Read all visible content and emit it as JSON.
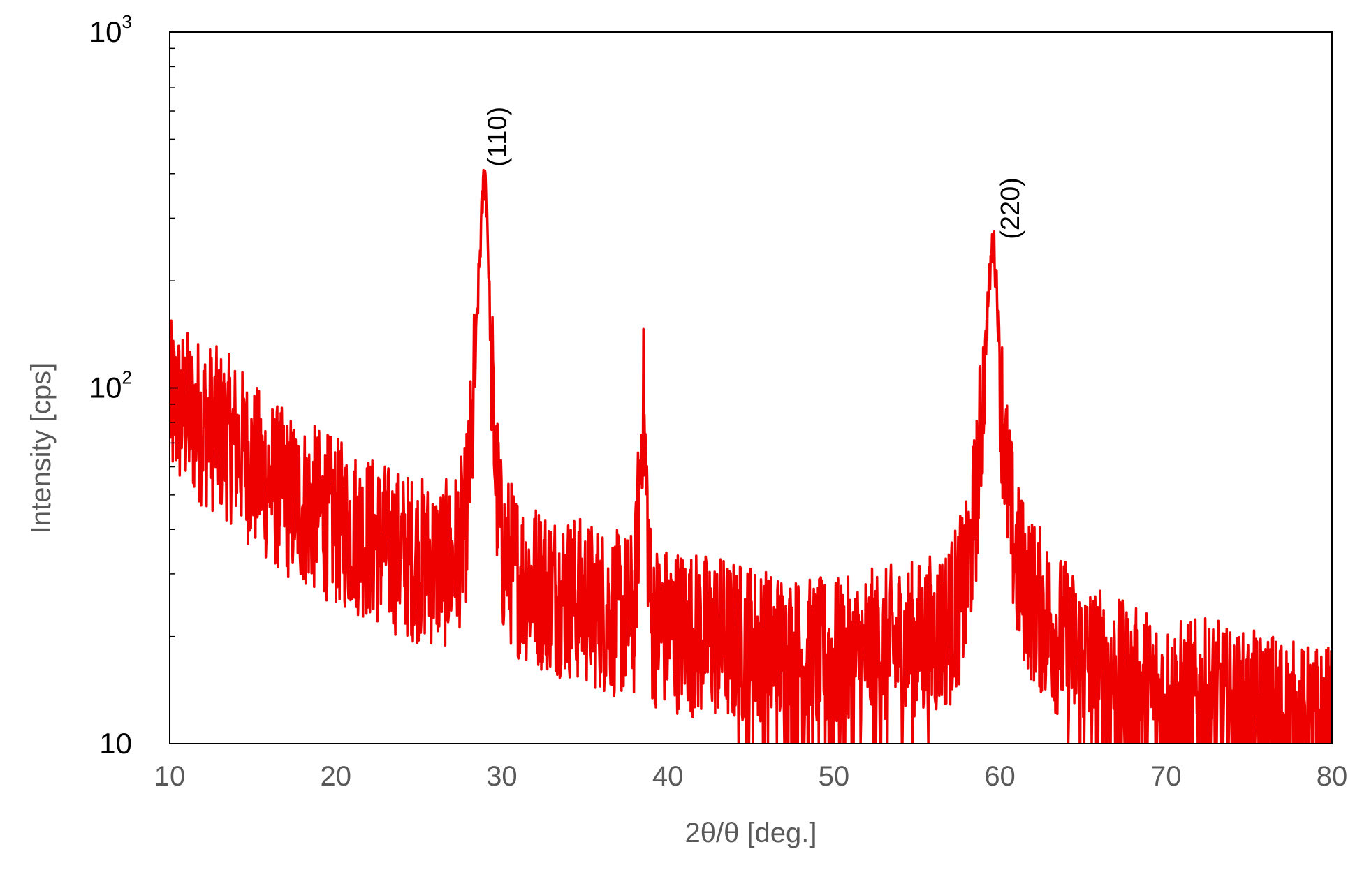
{
  "chart_data": {
    "type": "line",
    "title": "",
    "xlabel": "2θ/θ [deg.]",
    "ylabel": "Intensity [cps]",
    "xlim": [
      10,
      80
    ],
    "ylim": [
      10,
      1000
    ],
    "y_scale": "log",
    "grid": false,
    "legend": "none",
    "x_ticks": [
      10,
      20,
      30,
      40,
      50,
      60,
      70,
      80
    ],
    "x_tick_labels": [
      "10",
      "20",
      "30",
      "40",
      "50",
      "60",
      "70",
      "80"
    ],
    "y_ticks": [
      {
        "value": 10,
        "base": "10",
        "exp": ""
      },
      {
        "value": 100,
        "base": "10",
        "exp": "2"
      },
      {
        "value": 1000,
        "base": "10",
        "exp": "3"
      }
    ],
    "annotations": [
      {
        "text": "(110)",
        "x": 29.5,
        "y": 400
      },
      {
        "text": "(220)",
        "x": 60.4,
        "y": 250
      }
    ],
    "series": [
      {
        "color": "#ee0000",
        "x": [
          10,
          11,
          12,
          13,
          14,
          15,
          16,
          17,
          18,
          19,
          20,
          21,
          22,
          23,
          24,
          25,
          26,
          27,
          27.8,
          28.2,
          28.5,
          28.7,
          28.9,
          29.0,
          29.1,
          29.3,
          29.6,
          30,
          31,
          32,
          33,
          34,
          35,
          36,
          37,
          38,
          38.5,
          39,
          40,
          41,
          42,
          43,
          44,
          45,
          46,
          47,
          48,
          49,
          50,
          51,
          52,
          53,
          54,
          55,
          56,
          57,
          58,
          58.6,
          59.0,
          59.3,
          59.5,
          59.6,
          59.8,
          60.1,
          60.5,
          61,
          62,
          63,
          64,
          65,
          66,
          67,
          68,
          69,
          70,
          71,
          72,
          73,
          74,
          75,
          76,
          77,
          78,
          79,
          80
        ],
        "y": [
          90,
          85,
          80,
          75,
          70,
          60,
          55,
          50,
          47,
          45,
          42,
          40,
          38,
          36,
          34,
          33,
          32,
          32,
          40,
          70,
          150,
          250,
          380,
          400,
          330,
          150,
          60,
          35,
          30,
          28,
          27,
          26,
          25,
          24,
          23,
          23,
          95,
          22,
          21,
          21,
          20,
          20,
          19,
          19,
          18,
          18,
          17,
          17,
          17,
          17,
          18,
          18,
          19,
          19,
          20,
          22,
          28,
          50,
          100,
          180,
          240,
          255,
          200,
          90,
          50,
          32,
          25,
          22,
          19,
          17,
          16,
          15,
          14,
          14,
          13,
          13,
          13,
          13,
          12,
          12,
          12,
          12,
          11,
          11,
          11
        ]
      }
    ]
  }
}
